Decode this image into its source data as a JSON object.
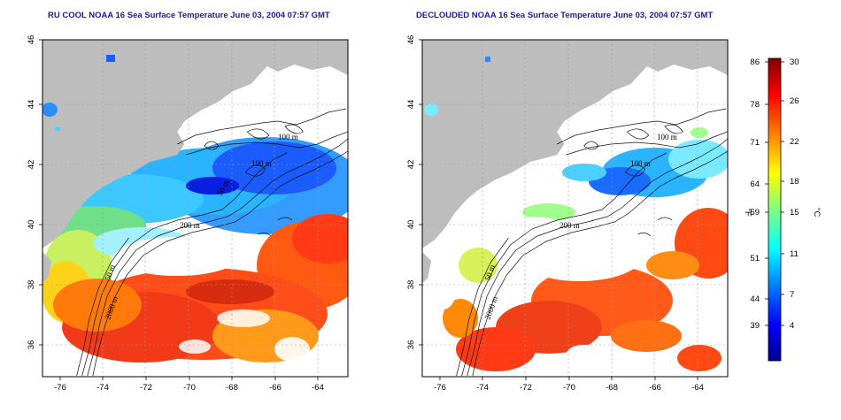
{
  "titles": {
    "left": "RU COOL NOAA 16 Sea Surface Temperature June 03, 2004 07:57 GMT",
    "right": "DECLOUDED NOAA 16 Sea Surface Temperature June 03, 2004 07:57 GMT"
  },
  "axes": {
    "lon_ticks": [
      "-76",
      "-74",
      "-72",
      "-70",
      "-68",
      "-66",
      "-64"
    ],
    "lat_ticks": [
      "36",
      "38",
      "40",
      "42",
      "44",
      "46"
    ]
  },
  "contour_labels": {
    "left": [
      "100 m",
      "100 m",
      "50 m",
      "200 m",
      "50 m",
      "2000 m"
    ],
    "right": [
      "100 m",
      "100 m",
      "200 m",
      "50 m",
      "2000 m"
    ]
  },
  "colorbar": {
    "fahrenheit_label": "°F",
    "celsius_label": "°C",
    "fahrenheit_ticks": [
      "86",
      "78",
      "71",
      "64",
      "59",
      "51",
      "44",
      "39"
    ],
    "celsius_ticks": [
      "30",
      "26",
      "22",
      "18",
      "15",
      "11",
      "7",
      "4"
    ],
    "colors": [
      "#00008f",
      "#0000ff",
      "#0080ff",
      "#00ffff",
      "#80ff80",
      "#ffff00",
      "#ff8000",
      "#ff0000",
      "#800000"
    ]
  },
  "colors": {
    "land": "#bdbdbd",
    "cloud": "#ffffff",
    "title": "#1b1b9a"
  }
}
